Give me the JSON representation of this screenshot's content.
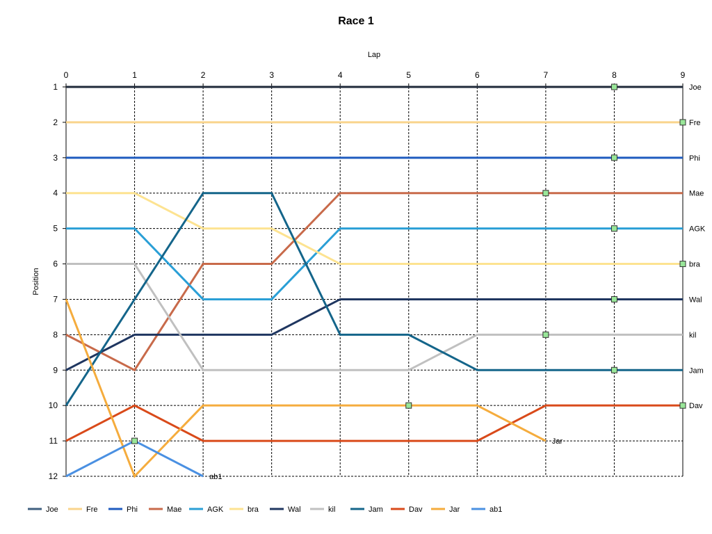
{
  "chart_data": {
    "type": "line",
    "title": "Race 1",
    "xlabel": "Lap",
    "ylabel": "Position",
    "x_axis_position": "top",
    "y_inverted": true,
    "xlim": [
      0,
      9
    ],
    "ylim": [
      1,
      12
    ],
    "grid": true,
    "legend_position": "bottom",
    "marker_color": "#99e699",
    "x": [
      0,
      1,
      2,
      3,
      4,
      5,
      6,
      7,
      8,
      9
    ],
    "xticks": [
      "0",
      "1",
      "2",
      "3",
      "4",
      "5",
      "6",
      "7",
      "8",
      "9"
    ],
    "yticks": [
      "1",
      "2",
      "3",
      "4",
      "5",
      "6",
      "7",
      "8",
      "9",
      "10",
      "11",
      "12"
    ],
    "series": [
      {
        "name": "Joe",
        "color": "#1f2a3a",
        "legend_color": "#3f5f7f",
        "values": [
          1,
          1,
          1,
          1,
          1,
          1,
          1,
          1,
          1,
          1
        ],
        "marker_at": 8,
        "end_label": "Joe"
      },
      {
        "name": "Fre",
        "color": "#f9d48c",
        "legend_color": "#f9d48c",
        "values": [
          2,
          2,
          2,
          2,
          2,
          2,
          2,
          2,
          2,
          2
        ],
        "marker_at": 9,
        "end_label": "Fre"
      },
      {
        "name": "Phi",
        "color": "#1e5bbf",
        "legend_color": "#1e5bbf",
        "values": [
          3,
          3,
          3,
          3,
          3,
          3,
          3,
          3,
          3,
          3
        ],
        "marker_at": 8,
        "end_label": "Phi"
      },
      {
        "name": "Mae",
        "color": "#c86a4a",
        "legend_color": "#c86a4a",
        "values": [
          8,
          9,
          6,
          6,
          4,
          4,
          4,
          4,
          4,
          4
        ],
        "marker_at": 7,
        "end_label": "Mae"
      },
      {
        "name": "AGK",
        "color": "#2a9fd6",
        "legend_color": "#2a9fd6",
        "values": [
          5,
          5,
          7,
          7,
          5,
          5,
          5,
          5,
          5,
          5
        ],
        "marker_at": 8,
        "end_label": "AGK"
      },
      {
        "name": "bra",
        "color": "#fde391",
        "legend_color": "#fde391",
        "values": [
          4,
          4,
          5,
          5,
          6,
          6,
          6,
          6,
          6,
          6
        ],
        "marker_at": 9,
        "end_label": "bra"
      },
      {
        "name": "Wal",
        "color": "#1f3660",
        "legend_color": "#1f3660",
        "values": [
          9,
          8,
          8,
          8,
          7,
          7,
          7,
          7,
          7,
          7
        ],
        "marker_at": 8,
        "end_label": "Wal"
      },
      {
        "name": "kil",
        "color": "#c0c0c0",
        "legend_color": "#c0c0c0",
        "values": [
          6,
          6,
          9,
          9,
          9,
          9,
          8,
          8,
          8,
          8
        ],
        "marker_at": 7,
        "end_label": "kil"
      },
      {
        "name": "Jam",
        "color": "#14658a",
        "legend_color": "#14658a",
        "values": [
          10,
          7,
          4,
          4,
          8,
          8,
          9,
          9,
          9,
          9
        ],
        "marker_at": 8,
        "end_label": "Jam"
      },
      {
        "name": "Dav",
        "color": "#d94a1a",
        "legend_color": "#d94a1a",
        "values": [
          11,
          10,
          11,
          11,
          11,
          11,
          11,
          10,
          10,
          10
        ],
        "marker_at": 9,
        "end_label": "Dav"
      },
      {
        "name": "Jar",
        "color": "#f5ac3d",
        "legend_color": "#f5ac3d",
        "values": [
          7,
          12,
          10,
          10,
          10,
          10,
          10,
          11,
          null,
          null
        ],
        "marker_at": 5,
        "end_label": "Jar"
      },
      {
        "name": "ab1",
        "color": "#4a90e2",
        "legend_color": "#4a90e2",
        "values": [
          12,
          11,
          12,
          null,
          null,
          null,
          null,
          null,
          null,
          null
        ],
        "marker_at": 1,
        "end_label": "ab1"
      }
    ]
  }
}
